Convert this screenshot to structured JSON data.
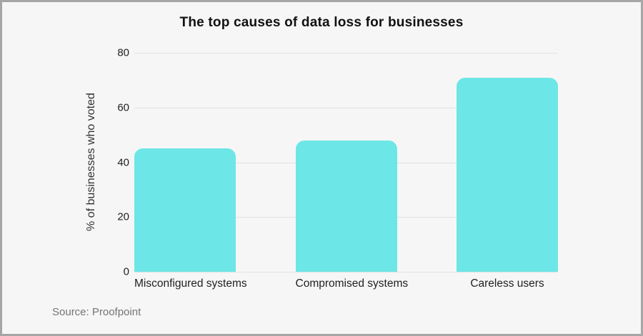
{
  "chart_data": {
    "type": "bar",
    "title": "The top causes of data loss for businesses",
    "categories": [
      "Misconfigured systems",
      "Compromised systems",
      "Careless users"
    ],
    "values": [
      45,
      48,
      71
    ],
    "xlabel": "",
    "ylabel": "% of businesses who voted",
    "ylim": [
      0,
      80
    ],
    "yticks": [
      0,
      20,
      40,
      60,
      80
    ],
    "grid": true,
    "legend": false,
    "bar_color": "#6de6e7"
  },
  "source": {
    "text": "Source: Proofpoint"
  }
}
